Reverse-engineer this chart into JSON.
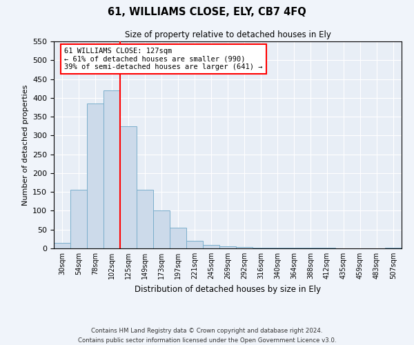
{
  "title": "61, WILLIAMS CLOSE, ELY, CB7 4FQ",
  "subtitle": "Size of property relative to detached houses in Ely",
  "xlabel": "Distribution of detached houses by size in Ely",
  "ylabel": "Number of detached properties",
  "bar_labels": [
    "30sqm",
    "54sqm",
    "78sqm",
    "102sqm",
    "125sqm",
    "149sqm",
    "173sqm",
    "197sqm",
    "221sqm",
    "245sqm",
    "269sqm",
    "292sqm",
    "316sqm",
    "340sqm",
    "364sqm",
    "388sqm",
    "412sqm",
    "435sqm",
    "459sqm",
    "483sqm",
    "507sqm"
  ],
  "bar_heights": [
    15,
    155,
    385,
    420,
    325,
    155,
    100,
    55,
    20,
    10,
    5,
    3,
    2,
    1,
    1,
    1,
    1,
    0,
    0,
    0,
    1
  ],
  "bar_color": "#ccdaea",
  "bar_edge_color": "#7aaecb",
  "vline_x": 4,
  "vline_color": "red",
  "ylim": [
    0,
    550
  ],
  "yticks": [
    0,
    50,
    100,
    150,
    200,
    250,
    300,
    350,
    400,
    450,
    500,
    550
  ],
  "annotation_title": "61 WILLIAMS CLOSE: 127sqm",
  "annotation_line1": "← 61% of detached houses are smaller (990)",
  "annotation_line2": "39% of semi-detached houses are larger (641) →",
  "annotation_box_color": "red",
  "footer_line1": "Contains HM Land Registry data © Crown copyright and database right 2024.",
  "footer_line2": "Contains public sector information licensed under the Open Government Licence v3.0.",
  "background_color": "#f0f4fa",
  "plot_bg_color": "#e8eef6"
}
